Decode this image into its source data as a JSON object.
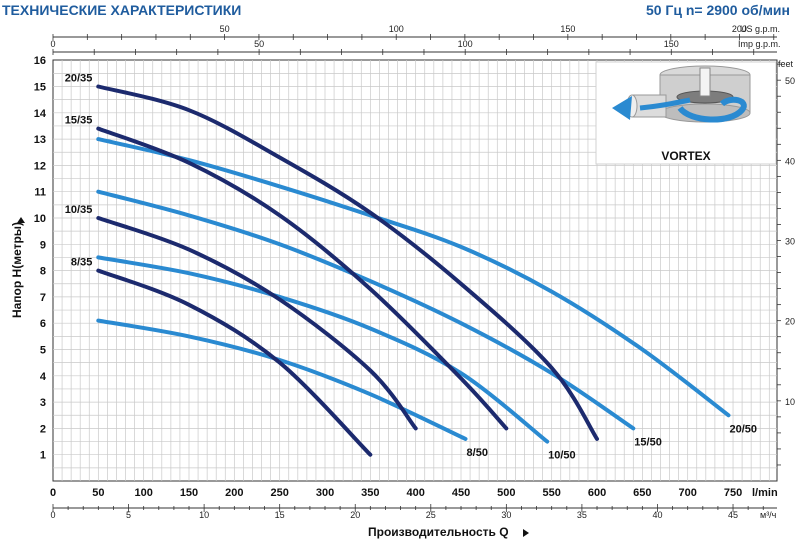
{
  "header": {
    "title": "ТЕХНИЧЕСКИЕ ХАРАКТЕРИСТИКИ",
    "spec": "50 Гц  n= 2900 об/мин"
  },
  "colors": {
    "dark": "#1c2a6e",
    "light": "#2a8ad1",
    "grid": "#c9c9c9"
  },
  "chart_data": {
    "type": "line",
    "ylabel": "Напор H(метры)",
    "xlabel": "Производительность Q",
    "x_unit_bottom": "l/min",
    "x_unit_m3h": "м³/ч",
    "y_unit_right": "feet",
    "top_unit_us": "US g.p.m.",
    "top_unit_imp": "Imp g.p.m.",
    "xlim": [
      0,
      800
    ],
    "ylim": [
      0,
      16
    ],
    "x_ticks_lmin": [
      0,
      50,
      100,
      150,
      200,
      250,
      300,
      350,
      400,
      450,
      500,
      550,
      600,
      650,
      700,
      750
    ],
    "x_ticks_m3h": [
      0,
      5,
      10,
      15,
      20,
      25,
      30,
      35,
      40,
      45
    ],
    "y_ticks_m": [
      1,
      2,
      3,
      4,
      5,
      6,
      7,
      8,
      9,
      10,
      11,
      12,
      13,
      14,
      15,
      16
    ],
    "y_ticks_feet": [
      10,
      20,
      30,
      40,
      50
    ],
    "top_ticks_us": [
      50,
      100,
      150,
      200
    ],
    "top_ticks_imp": [
      0,
      50,
      100,
      150
    ],
    "series": [
      {
        "name": "20/35",
        "style": "dark",
        "label_side": "left",
        "x": [
          50,
          150,
          250,
          350,
          450,
          550,
          600
        ],
        "y": [
          15,
          14.1,
          12.3,
          10.2,
          7.5,
          4.3,
          1.6
        ]
      },
      {
        "name": "15/35",
        "style": "dark",
        "label_side": "left",
        "x": [
          50,
          150,
          250,
          350,
          450,
          500
        ],
        "y": [
          13.4,
          12.1,
          10.1,
          7.3,
          3.9,
          2
        ]
      },
      {
        "name": "10/35",
        "style": "dark",
        "label_side": "left",
        "x": [
          50,
          150,
          250,
          350,
          400
        ],
        "y": [
          10,
          8.8,
          6.9,
          4.2,
          2
        ]
      },
      {
        "name": "8/35",
        "style": "dark",
        "label_side": "left",
        "x": [
          50,
          150,
          250,
          350
        ],
        "y": [
          8,
          6.7,
          4.5,
          1
        ]
      },
      {
        "name": "20/50",
        "style": "light",
        "label_side": "right",
        "x": [
          50,
          150,
          250,
          350,
          450,
          550,
          650,
          745
        ],
        "y": [
          13,
          12.2,
          11.2,
          10.1,
          8.9,
          7.2,
          5,
          2.5
        ]
      },
      {
        "name": "15/50",
        "style": "light",
        "label_side": "right",
        "x": [
          50,
          150,
          250,
          350,
          450,
          550,
          640
        ],
        "y": [
          11,
          10.1,
          9,
          7.6,
          6,
          4.1,
          2
        ]
      },
      {
        "name": "10/50",
        "style": "light",
        "label_side": "right",
        "x": [
          50,
          150,
          250,
          350,
          450,
          545
        ],
        "y": [
          8.5,
          7.9,
          7,
          5.8,
          4.1,
          1.5
        ]
      },
      {
        "name": "8/50",
        "style": "light",
        "label_side": "right",
        "x": [
          50,
          150,
          250,
          350,
          455
        ],
        "y": [
          6.1,
          5.5,
          4.6,
          3.3,
          1.6
        ]
      }
    ]
  },
  "inset": {
    "label": "VORTEX"
  }
}
